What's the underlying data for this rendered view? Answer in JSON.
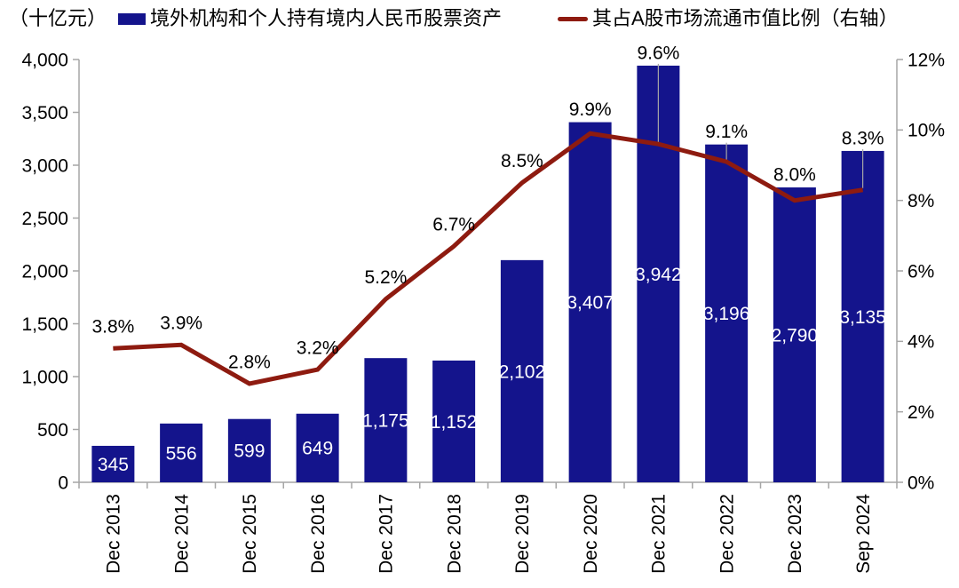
{
  "header": {
    "unit_label": "（十亿元）",
    "legend": [
      {
        "label": "境外机构和个人持有境内人民币股票资产",
        "type": "bar",
        "color": "#14148C"
      },
      {
        "label": "其占A股市场流通市值比例（右轴）",
        "type": "line",
        "color": "#8E1B10"
      }
    ]
  },
  "chart_data": {
    "type": "bar+line combo",
    "title": "",
    "categories": [
      "Dec 2013",
      "Dec 2014",
      "Dec 2015",
      "Dec 2016",
      "Dec 2017",
      "Dec 2018",
      "Dec 2019",
      "Dec 2020",
      "Dec 2021",
      "Dec 2022",
      "Dec 2023",
      "Sep 2024"
    ],
    "series": [
      {
        "name": "境外机构和个人持有境内人民币股票资产",
        "type": "bar",
        "axis": "left",
        "unit": "十亿元",
        "values": [
          345,
          556,
          599,
          649,
          1175,
          1152,
          2102,
          3407,
          3942,
          3196,
          2790,
          3135
        ],
        "labels": [
          "345",
          "556",
          "599",
          "649",
          "1,175",
          "1,152",
          "2,102",
          "3,407",
          "3,942",
          "3,196",
          "2,790",
          "3,135"
        ],
        "color": "#14148C",
        "label_color": "#FFFFFF"
      },
      {
        "name": "其占A股市场流通市值比例（右轴）",
        "type": "line",
        "axis": "right",
        "unit": "%",
        "values": [
          3.8,
          3.9,
          2.8,
          3.2,
          5.2,
          6.7,
          8.5,
          9.9,
          9.6,
          9.1,
          8.0,
          8.3
        ],
        "labels": [
          "3.8%",
          "3.9%",
          "2.8%",
          "3.2%",
          "5.2%",
          "6.7%",
          "8.5%",
          "9.9%",
          "9.6%",
          "9.1%",
          "8.0%",
          "8.3%"
        ],
        "color": "#8E1B10",
        "label_color": "#000000"
      }
    ],
    "left_axis": {
      "min": 0,
      "max": 4000,
      "step": 500,
      "tick_labels": [
        "0",
        "500",
        "1,000",
        "1,500",
        "2,000",
        "2,500",
        "3,000",
        "3,500",
        "4,000"
      ]
    },
    "right_axis": {
      "min": 0,
      "max": 12,
      "step": 2,
      "tick_labels": [
        "0%",
        "2%",
        "4%",
        "6%",
        "8%",
        "10%",
        "12%"
      ]
    },
    "grid": false,
    "legend_position": "top",
    "axis_color": "#A6A6A6",
    "leader_line_color": "#A6A6A6",
    "x_labels_rotation_deg": -90
  }
}
